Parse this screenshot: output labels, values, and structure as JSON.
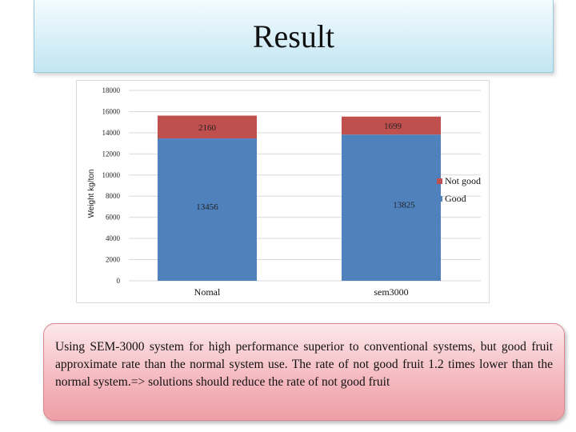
{
  "slide": {
    "title": "Result",
    "note": "Using SEM-3000 system for high performance superior to conventional systems, but good fruit approximate rate than the normal system use. The rate of not good fruit 1.2 times lower than the normal system.=> solutions should reduce the rate of not good fruit"
  },
  "chart_data": {
    "type": "bar",
    "stacked": true,
    "categories": [
      "Nomal",
      "sem3000"
    ],
    "series": [
      {
        "name": "Good",
        "values": [
          13456,
          13825
        ],
        "color": "#4f81bd"
      },
      {
        "name": "Not good",
        "values": [
          2160,
          1699
        ],
        "color": "#c0504d"
      }
    ],
    "ylabel": "Weight kg/ton",
    "xlabel": "",
    "ylim": [
      0,
      18000
    ],
    "yticks": [
      0,
      2000,
      4000,
      6000,
      8000,
      10000,
      12000,
      14000,
      16000,
      18000
    ],
    "grid": true,
    "legend_position": "right"
  }
}
